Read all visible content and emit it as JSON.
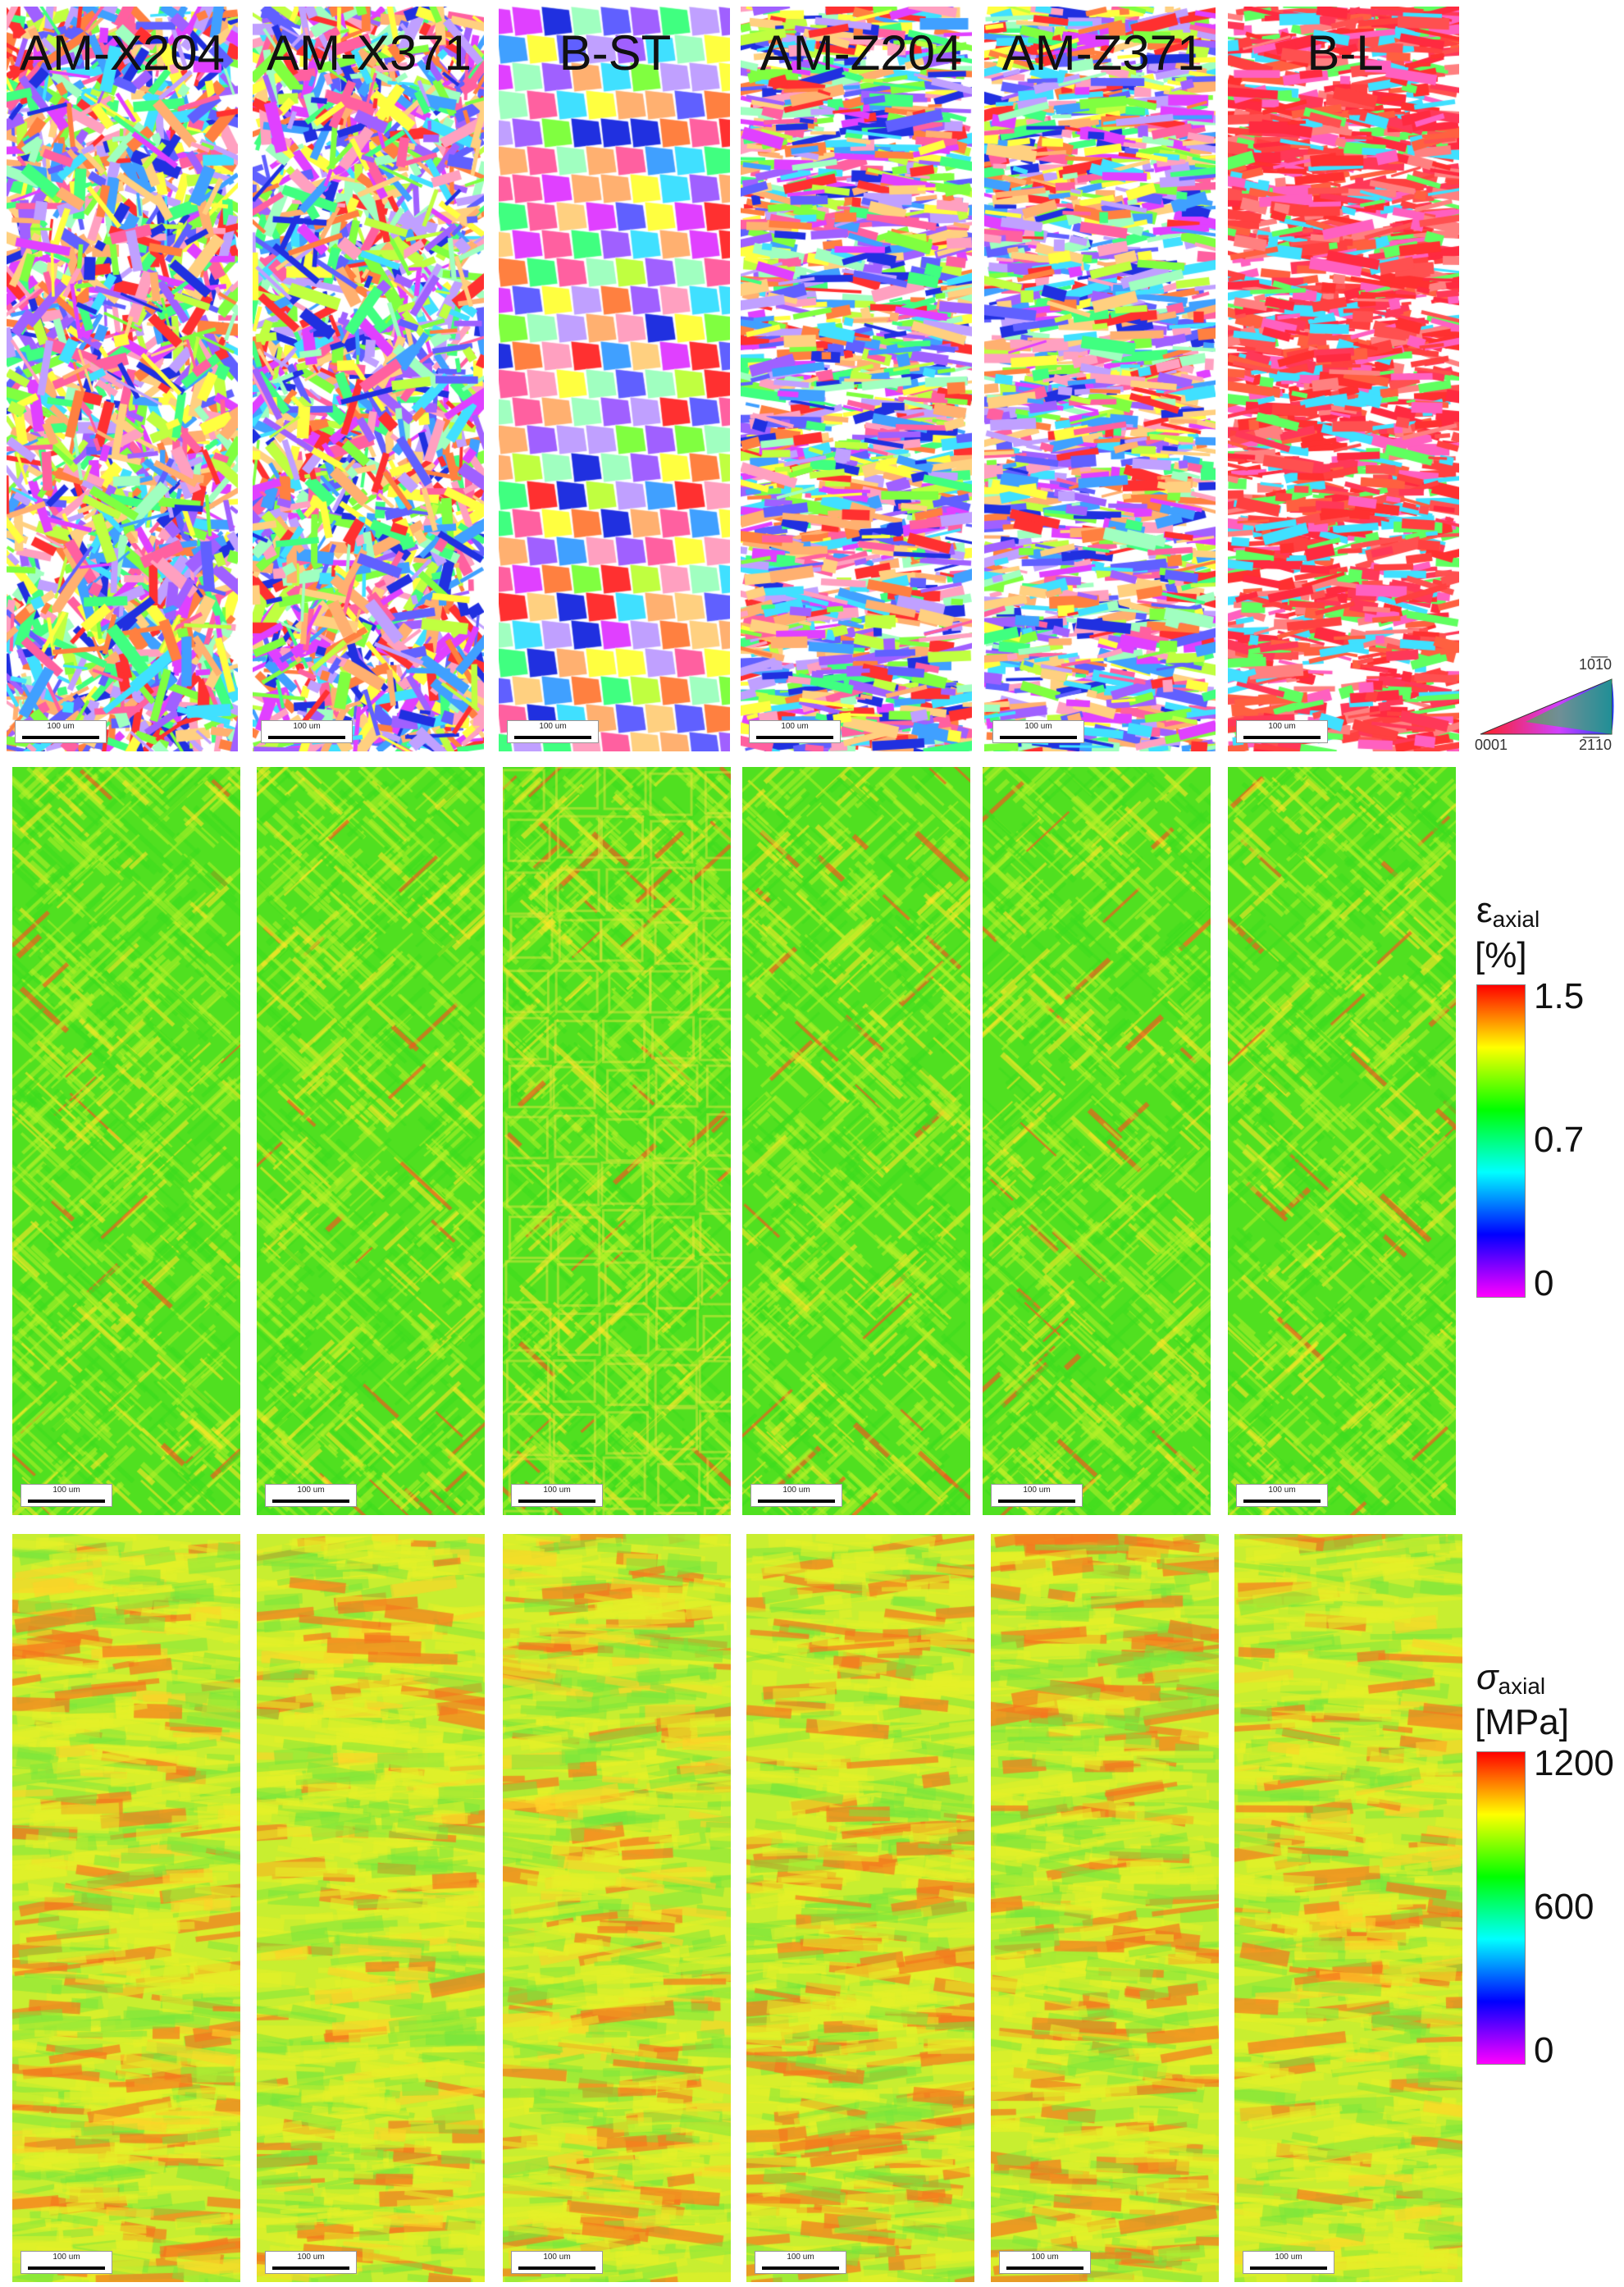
{
  "columns": [
    {
      "label": "AM-X204"
    },
    {
      "label": "AM-X371"
    },
    {
      "label": "B-ST"
    },
    {
      "label": "AM-Z204"
    },
    {
      "label": "AM-Z371"
    },
    {
      "label": "B-L"
    }
  ],
  "scalebar_label": "100 um",
  "ipf_key": {
    "top": "10̅1̅0",
    "left": "0001",
    "right": "2̅1̅10"
  },
  "strain_legend": {
    "symbol": "ε",
    "subscript": "axial",
    "unit": "[%]",
    "ticks": [
      "1.5",
      "0.7",
      "0"
    ]
  },
  "stress_legend": {
    "symbol": "σ",
    "subscript": "axial",
    "unit": "[MPa]",
    "ticks": [
      "1200",
      "600",
      "0"
    ]
  },
  "colors": {
    "colormap": [
      "#ff00ff",
      "#0000ff",
      "#00ffff",
      "#00ff00",
      "#ffff00",
      "#ff0000"
    ]
  }
}
